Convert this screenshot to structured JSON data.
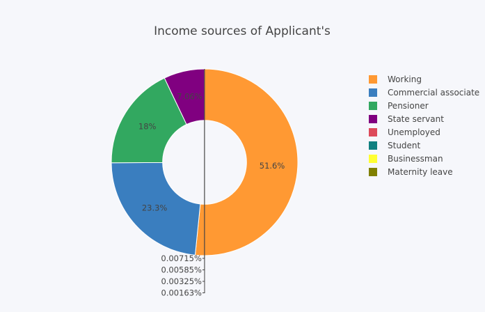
{
  "chart_data": {
    "type": "pie",
    "hole": 0.45,
    "title": "Income sources of Applicant's",
    "labels": [
      "Working",
      "Commercial associate",
      "Pensioner",
      "State servant",
      "Unemployed",
      "Student",
      "Businessman",
      "Maternity leave"
    ],
    "values": [
      51.6,
      23.3,
      18,
      7.06,
      0.00715,
      0.00585,
      0.00325,
      0.00163
    ],
    "text": [
      "51.6%",
      "23.3%",
      "18%",
      "7.06%",
      "0.00715%",
      "0.00585%",
      "0.00325%",
      "0.00163%"
    ],
    "colors": [
      "#ff9933",
      "#3a7ebf",
      "#32a860",
      "#800080",
      "#dd4a5a",
      "#108080",
      "#ffff33",
      "#808000"
    ],
    "legend_position": "right"
  }
}
